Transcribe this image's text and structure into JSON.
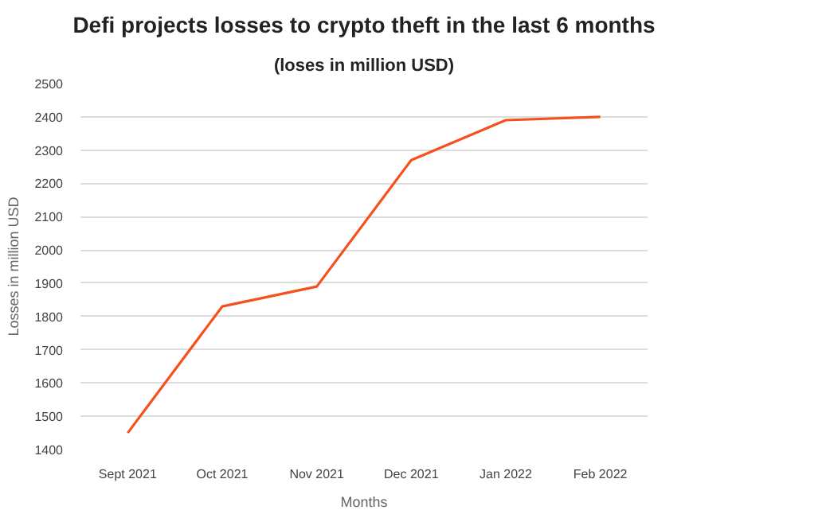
{
  "chart_data": {
    "type": "line",
    "title": "Defi projects losses to crypto theft in the last 6 months",
    "subtitle": "(loses in million USD)",
    "xlabel": "Months",
    "ylabel": "Losses in million USD",
    "categories": [
      "Sept 2021",
      "Oct 2021",
      "Nov 2021",
      "Dec 2021",
      "Jan 2022",
      "Feb 2022"
    ],
    "series": [
      {
        "color": "#f4511e",
        "values": [
          1450,
          1830,
          1890,
          2270,
          2390,
          2400
        ]
      }
    ],
    "ylim": [
      1400,
      2500
    ],
    "yticks": [
      1400,
      1500,
      1600,
      1700,
      1800,
      1900,
      2000,
      2100,
      2200,
      2300,
      2400,
      2500
    ],
    "grid": "y",
    "marker": "none",
    "line_style": "solid"
  }
}
